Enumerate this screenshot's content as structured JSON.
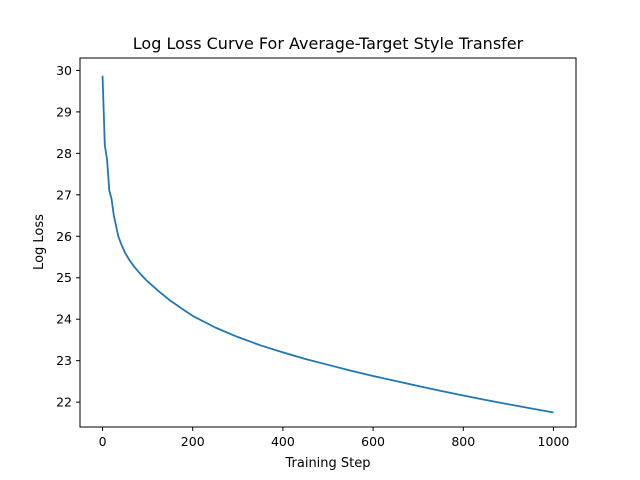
{
  "chart_data": {
    "type": "line",
    "title": "Log Loss Curve For Average-Target Style Transfer",
    "xlabel": "Training Step",
    "ylabel": "Log Loss",
    "xlim": [
      -50,
      1050
    ],
    "ylim": [
      21.4,
      30.3
    ],
    "xticks": [
      0,
      200,
      400,
      600,
      800,
      1000
    ],
    "yticks": [
      22,
      23,
      24,
      25,
      26,
      27,
      28,
      29,
      30
    ],
    "grid": false,
    "legend": "none",
    "color": "#1f77b4",
    "series": [
      {
        "x": [
          0,
          5,
          10,
          15,
          20,
          25,
          30,
          35,
          40,
          50,
          60,
          70,
          80,
          90,
          100,
          125,
          150,
          175,
          200,
          250,
          300,
          350,
          400,
          450,
          500,
          550,
          600,
          650,
          700,
          750,
          800,
          850,
          900,
          950,
          1000
        ],
        "values": [
          29.87,
          28.2,
          27.85,
          27.1,
          26.9,
          26.5,
          26.25,
          26.0,
          25.85,
          25.6,
          25.42,
          25.27,
          25.14,
          25.02,
          24.91,
          24.67,
          24.45,
          24.26,
          24.08,
          23.8,
          23.57,
          23.37,
          23.2,
          23.04,
          22.9,
          22.76,
          22.63,
          22.51,
          22.39,
          22.27,
          22.16,
          22.05,
          21.95,
          21.85,
          21.75
        ]
      }
    ]
  }
}
